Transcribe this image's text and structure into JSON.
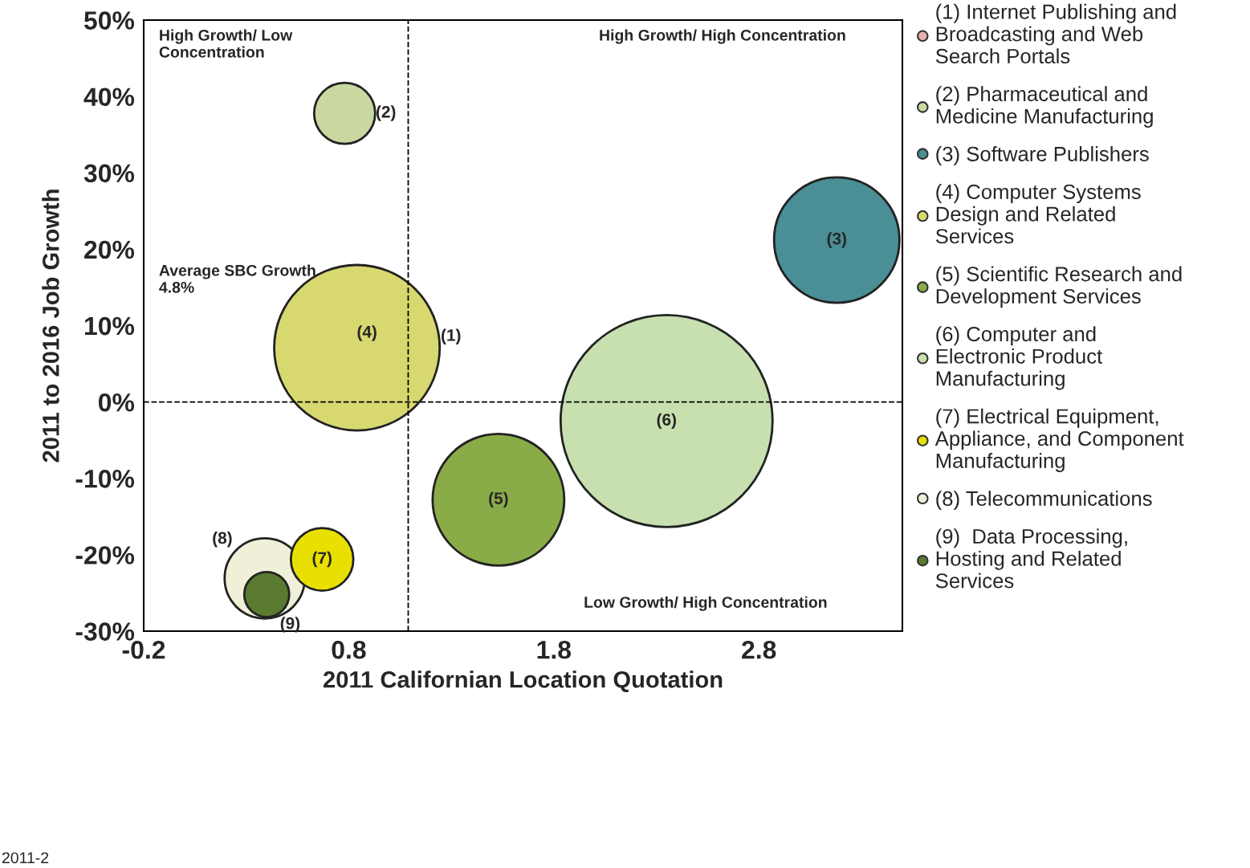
{
  "chart_data": {
    "type": "bubble",
    "xlabel": "2011 Californian Location Quotation",
    "ylabel": "2011 to 2016 Job Growth",
    "xlim": [
      -0.2,
      3.5
    ],
    "xticks": [
      -0.2,
      0.8,
      1.8,
      2.8
    ],
    "ylim": [
      -30,
      50
    ],
    "yticks": [
      {
        "value": -30,
        "label": "-30%"
      },
      {
        "value": -20,
        "label": "-20%"
      },
      {
        "value": -10,
        "label": "-10%"
      },
      {
        "value": 0,
        "label": "0%"
      },
      {
        "value": 10,
        "label": "10%"
      },
      {
        "value": 20,
        "label": "20%"
      },
      {
        "value": 30,
        "label": "30%"
      },
      {
        "value": 40,
        "label": "40%"
      },
      {
        "value": 50,
        "label": "50%"
      }
    ],
    "grid": false,
    "legend": "right",
    "series": [
      {
        "name": "(1) Internet Publishing and\nBroadcasting and Web\nSearch Portals",
        "color": "#e8b0b0",
        "x": [
          null
        ],
        "values": [
          null
        ],
        "sizes": [
          null
        ]
      },
      {
        "name": "(2) Pharmaceutical and\nMedicine Manufacturing",
        "color": "#c8d8a0",
        "x": [
          0.78
        ],
        "values": [
          37.8
        ],
        "sizes": [
          0.083
        ]
      },
      {
        "name": "(3) Software Publishers",
        "color": "#4a8e96",
        "x": [
          3.18
        ],
        "values": [
          21.2
        ],
        "sizes": [
          0.35
        ]
      },
      {
        "name": "(4) Computer Systems\nDesign and Related\nServices",
        "color": "#d8d870",
        "x": [
          0.84
        ],
        "values": [
          7.1
        ],
        "sizes": [
          0.61
        ]
      },
      {
        "name": "(5) Scientific Research and\nDevelopment Services",
        "color": "#8aac48",
        "x": [
          1.53
        ],
        "values": [
          -12.8
        ],
        "sizes": [
          0.386
        ]
      },
      {
        "name": "(6) Computer and\nElectronic Product\nManufacturing",
        "color": "#c8e0b0",
        "x": [
          2.35
        ],
        "values": [
          -2.5
        ],
        "sizes": [
          1
        ]
      },
      {
        "name": "(7) Electrical Equipment,\nAppliance, and Component\nManufacturing",
        "color": "#e8e000",
        "x": [
          0.67
        ],
        "values": [
          -20.6
        ],
        "sizes": [
          0.087
        ]
      },
      {
        "name": "(8) Telecommunications",
        "color": "#f0f0d8",
        "x": [
          0.39
        ],
        "values": [
          -23.1
        ],
        "sizes": [
          0.143
        ]
      },
      {
        "name": "(9)  Data Processing,\nHosting and Related\nServices",
        "color": "#5a7a30",
        "x": [
          0.4
        ],
        "values": [
          -25.2
        ],
        "sizes": [
          0.045
        ]
      }
    ],
    "ref_lines": [
      {
        "axis": "x",
        "value": 1.09,
        "line_style": "dashed",
        "color": "#000000"
      },
      {
        "axis": "y",
        "value": 0,
        "line_style": "dashed",
        "color": "#000000"
      }
    ],
    "annotations": [
      "(1)",
      {
        "text": "(2)",
        "x": 0.78,
        "y": 37.8
      },
      {
        "text": "(3)",
        "x": 3.18,
        "y": 21.2
      },
      {
        "text": "(4)",
        "x": 0.84,
        "y": 7.1
      },
      {
        "text": "(5)",
        "x": 1.53,
        "y": -12.8
      },
      {
        "text": "(6)",
        "x": 2.35,
        "y": -2.5
      },
      {
        "text": "(7)",
        "x": 0.67,
        "y": -20.6
      },
      {
        "text": "(8)",
        "x": 0.39,
        "y": -23.1
      },
      {
        "text": "(9)",
        "x": 0.4,
        "y": -25.2
      },
      "High Growth/ Low\nConcentration",
      "High Growth/ High Concentration",
      "Low Growth/ High Concentration",
      "Average SBC Growth\n4.8%",
      "2011-2"
    ]
  }
}
